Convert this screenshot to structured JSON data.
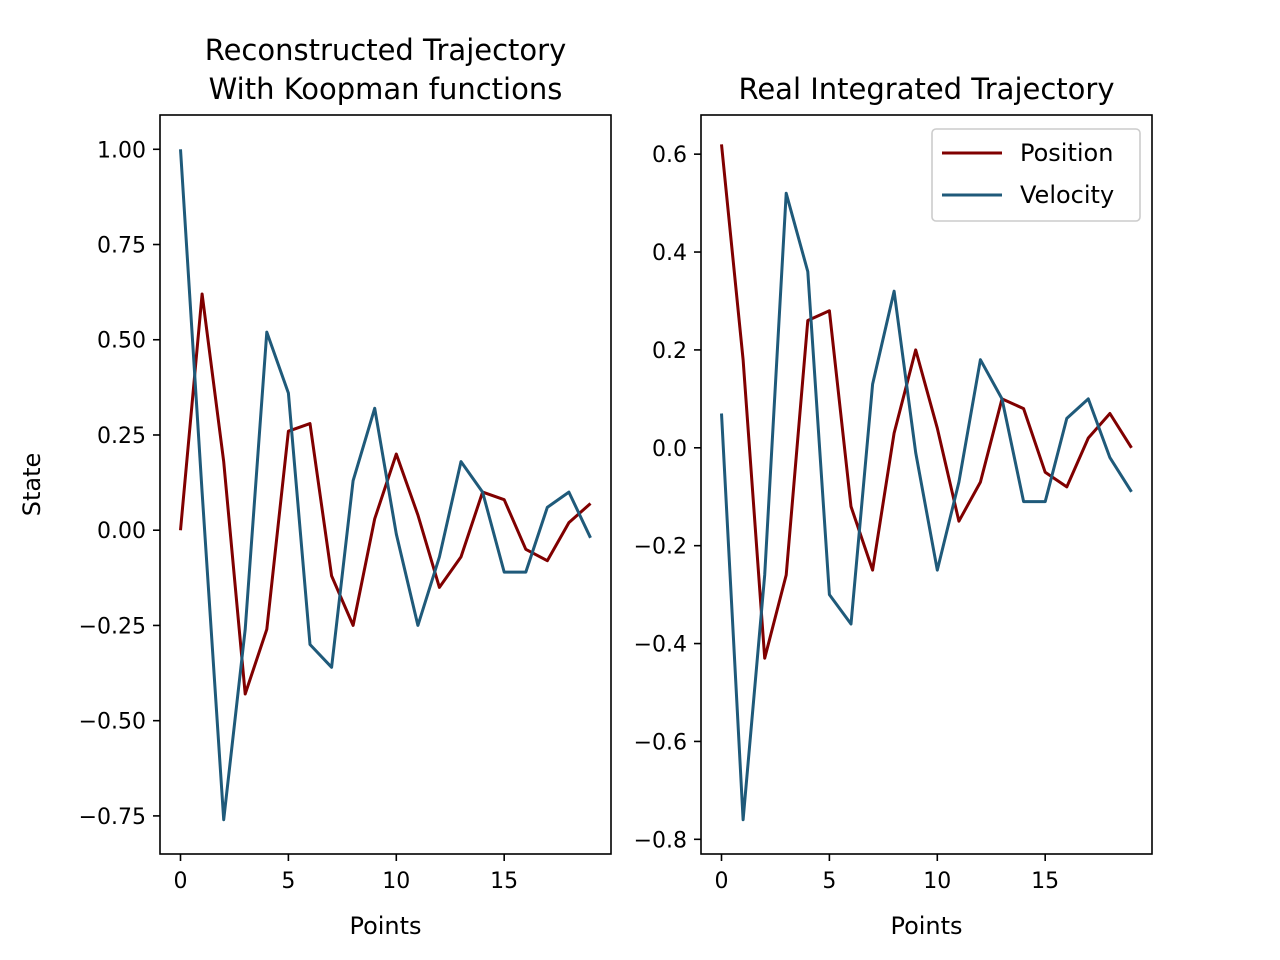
{
  "chart_data": [
    {
      "type": "line",
      "title_lines": [
        "Reconstructed Trajectory",
        "With Koopman functions"
      ],
      "xlabel": "Points",
      "ylabel": "State",
      "xlim": [
        -0.95,
        19.95
      ],
      "ylim": [
        -0.85,
        1.09
      ],
      "xticks": [
        0,
        5,
        10,
        15
      ],
      "xtick_labels": [
        "0",
        "5",
        "10",
        "15"
      ],
      "yticks": [
        1.0,
        0.75,
        0.5,
        0.25,
        0.0,
        -0.25,
        -0.5,
        -0.75
      ],
      "ytick_labels": [
        "1.00",
        "0.75",
        "0.50",
        "0.25",
        "0.00",
        "−0.25",
        "−0.50",
        "−0.75"
      ],
      "grid": false,
      "legend": null,
      "x": [
        0,
        1,
        2,
        3,
        4,
        5,
        6,
        7,
        8,
        9,
        10,
        11,
        12,
        13,
        14,
        15,
        16,
        17,
        18,
        19
      ],
      "series": [
        {
          "color": "#800000",
          "values": [
            0.0,
            0.62,
            0.18,
            -0.43,
            -0.26,
            0.26,
            0.28,
            -0.12,
            -0.25,
            0.03,
            0.2,
            0.04,
            -0.15,
            -0.07,
            0.1,
            0.08,
            -0.05,
            -0.08,
            0.02,
            0.07
          ]
        },
        {
          "color": "#1f5a7a",
          "values": [
            1.0,
            0.1,
            -0.76,
            -0.26,
            0.52,
            0.36,
            -0.3,
            -0.36,
            0.13,
            0.32,
            -0.01,
            -0.25,
            -0.07,
            0.18,
            0.1,
            -0.11,
            -0.11,
            0.06,
            0.1,
            -0.02
          ]
        }
      ]
    },
    {
      "type": "line",
      "title_lines": [
        "Real Integrated Trajectory"
      ],
      "xlabel": "Points",
      "ylabel": "",
      "xlim": [
        -0.95,
        19.95
      ],
      "ylim": [
        -0.83,
        0.68
      ],
      "xticks": [
        0,
        5,
        10,
        15
      ],
      "xtick_labels": [
        "0",
        "5",
        "10",
        "15"
      ],
      "yticks": [
        0.6,
        0.4,
        0.2,
        0.0,
        -0.2,
        -0.4,
        -0.6,
        -0.8
      ],
      "ytick_labels": [
        "0.6",
        "0.4",
        "0.2",
        "0.0",
        "−0.2",
        "−0.4",
        "−0.6",
        "−0.8"
      ],
      "grid": false,
      "legend": "top-right",
      "x": [
        0,
        1,
        2,
        3,
        4,
        5,
        6,
        7,
        8,
        9,
        10,
        11,
        12,
        13,
        14,
        15,
        16,
        17,
        18,
        19
      ],
      "series": [
        {
          "name": "Position",
          "color": "#800000",
          "values": [
            0.62,
            0.18,
            -0.43,
            -0.26,
            0.26,
            0.28,
            -0.12,
            -0.25,
            0.03,
            0.2,
            0.04,
            -0.15,
            -0.07,
            0.1,
            0.08,
            -0.05,
            -0.08,
            0.02,
            0.07,
            0.0
          ]
        },
        {
          "name": "Velocity",
          "color": "#1f5a7a",
          "values": [
            0.07,
            -0.76,
            -0.26,
            0.52,
            0.36,
            -0.3,
            -0.36,
            0.13,
            0.32,
            -0.01,
            -0.25,
            -0.07,
            0.18,
            0.1,
            -0.11,
            -0.11,
            0.06,
            0.1,
            -0.02,
            -0.09
          ]
        }
      ]
    }
  ]
}
